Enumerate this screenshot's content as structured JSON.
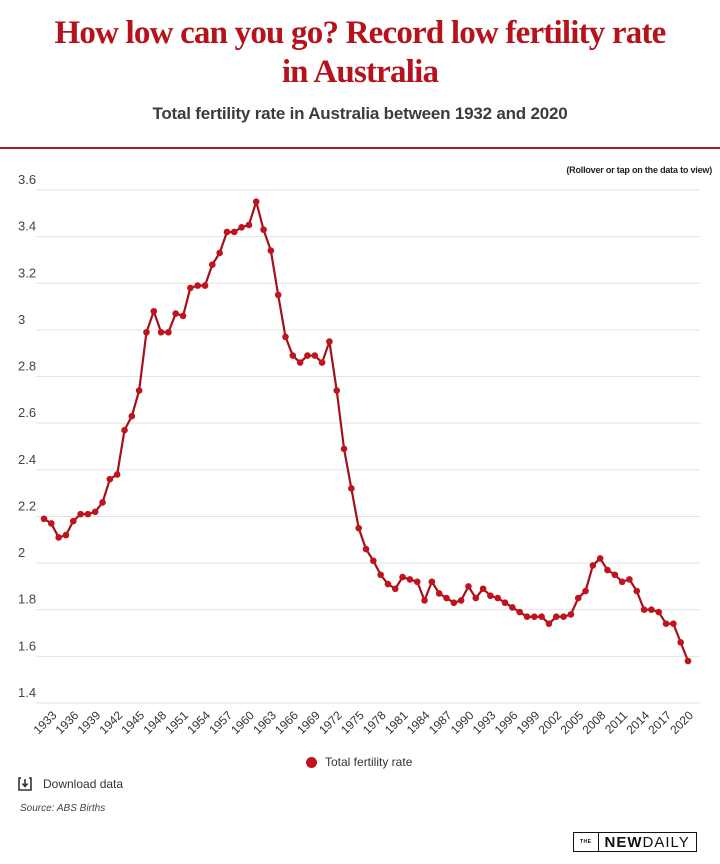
{
  "header": {
    "title_line1": "How low can you go? Record low fertility rate",
    "title_line2": "in Australia",
    "subtitle": "Total fertility rate in Australia between 1932 and 2020",
    "hint": "(Rollover or tap on the data to view)"
  },
  "colors": {
    "title": "#b5121b",
    "accent_rule": "#a3232a",
    "series": "#c0141c",
    "series_line": "#a3111a",
    "grid": "#e3e3e3"
  },
  "chart_data": {
    "type": "line",
    "title": "Total fertility rate in Australia between 1932 and 2020",
    "xlabel": "",
    "ylabel": "",
    "ylim": [
      1.4,
      3.6
    ],
    "yticks": [
      "1.4",
      "1.6",
      "1.8",
      "2",
      "2.2",
      "2.4",
      "2.6",
      "2.8",
      "3",
      "3.2",
      "3.4",
      "3.6"
    ],
    "ytick_values": [
      1.4,
      1.6,
      1.8,
      2.0,
      2.2,
      2.4,
      2.6,
      2.8,
      3.0,
      3.2,
      3.4,
      3.6
    ],
    "xticks": [
      "1933",
      "1936",
      "1939",
      "1942",
      "1945",
      "1948",
      "1951",
      "1954",
      "1957",
      "1960",
      "1963",
      "1966",
      "1969",
      "1972",
      "1975",
      "1978",
      "1981",
      "1984",
      "1987",
      "1990",
      "1993",
      "1996",
      "1999",
      "2002",
      "2005",
      "2008",
      "2011",
      "2014",
      "2017",
      "2020"
    ],
    "grid": true,
    "legend_position": "bottom-center",
    "x": [
      1932,
      1933,
      1934,
      1935,
      1936,
      1937,
      1938,
      1939,
      1940,
      1941,
      1942,
      1943,
      1944,
      1945,
      1946,
      1947,
      1948,
      1949,
      1950,
      1951,
      1952,
      1953,
      1954,
      1955,
      1956,
      1957,
      1958,
      1959,
      1960,
      1961,
      1962,
      1963,
      1964,
      1965,
      1966,
      1967,
      1968,
      1969,
      1970,
      1971,
      1972,
      1973,
      1974,
      1975,
      1976,
      1977,
      1978,
      1979,
      1980,
      1981,
      1982,
      1983,
      1984,
      1985,
      1986,
      1987,
      1988,
      1989,
      1990,
      1991,
      1992,
      1993,
      1994,
      1995,
      1996,
      1997,
      1998,
      1999,
      2000,
      2001,
      2002,
      2003,
      2004,
      2005,
      2006,
      2007,
      2008,
      2009,
      2010,
      2011,
      2012,
      2013,
      2014,
      2015,
      2016,
      2017,
      2018,
      2019,
      2020
    ],
    "series": [
      {
        "name": "Total fertility rate",
        "values": [
          2.19,
          2.17,
          2.11,
          2.12,
          2.18,
          2.21,
          2.21,
          2.22,
          2.26,
          2.36,
          2.38,
          2.57,
          2.63,
          2.74,
          2.99,
          3.08,
          2.99,
          2.99,
          3.07,
          3.06,
          3.18,
          3.19,
          3.19,
          3.28,
          3.33,
          3.42,
          3.42,
          3.44,
          3.45,
          3.55,
          3.43,
          3.34,
          3.15,
          2.97,
          2.89,
          2.86,
          2.89,
          2.89,
          2.86,
          2.95,
          2.74,
          2.49,
          2.32,
          2.15,
          2.06,
          2.01,
          1.95,
          1.91,
          1.89,
          1.94,
          1.93,
          1.92,
          1.84,
          1.92,
          1.87,
          1.85,
          1.83,
          1.84,
          1.9,
          1.85,
          1.89,
          1.86,
          1.85,
          1.83,
          1.81,
          1.79,
          1.77,
          1.77,
          1.77,
          1.74,
          1.77,
          1.77,
          1.78,
          1.85,
          1.88,
          1.99,
          2.02,
          1.97,
          1.95,
          1.92,
          1.93,
          1.88,
          1.8,
          1.8,
          1.79,
          1.74,
          1.74,
          1.66,
          1.58
        ]
      }
    ]
  },
  "legend": {
    "label": "Total fertility rate"
  },
  "footer": {
    "download_label": "Download data",
    "download_icon": "download-icon",
    "source": "Source: ABS Births",
    "logo_the": "THE",
    "logo_new": "NEW",
    "logo_daily": "DAILY"
  }
}
